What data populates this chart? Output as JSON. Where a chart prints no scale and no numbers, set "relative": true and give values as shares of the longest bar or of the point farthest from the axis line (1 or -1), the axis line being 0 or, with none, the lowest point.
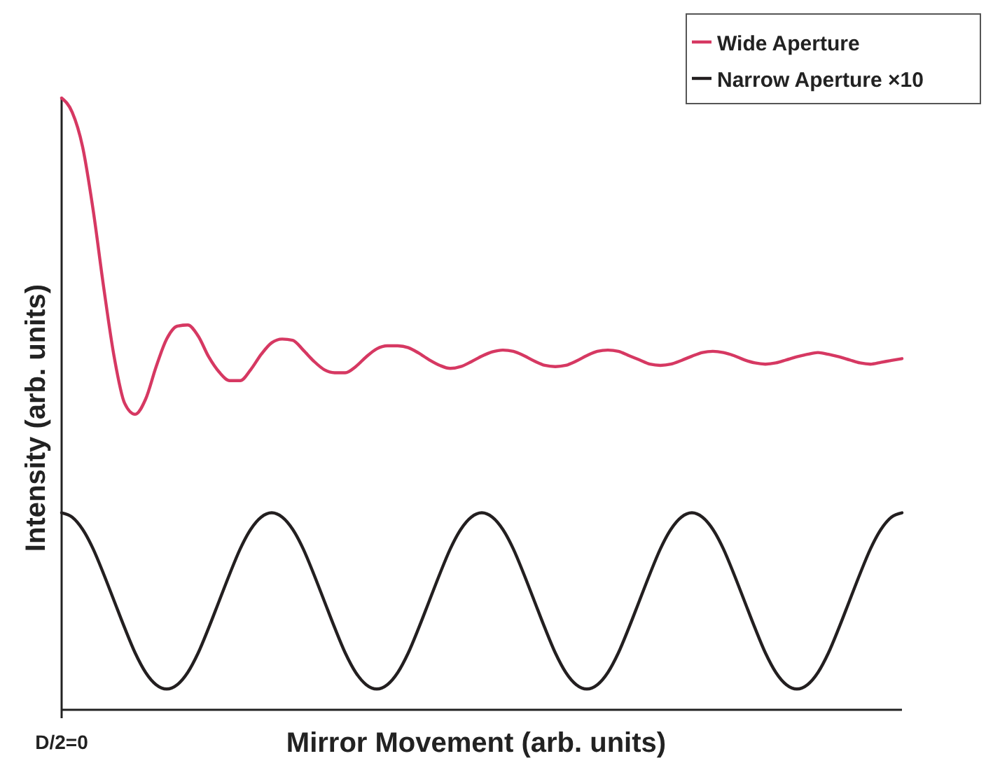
{
  "chart_data": {
    "type": "line",
    "relative": true,
    "xlabel": "Mirror Movement (arb. units)",
    "ylabel": "Intensity (arb. units)",
    "legend": "top right",
    "grid": false,
    "marker": "none",
    "line_style": "solid",
    "annotations": [
      "D/2=0"
    ],
    "categories": [
      null,
      null,
      null,
      null,
      null,
      null,
      null,
      null,
      null,
      null,
      null,
      null,
      null,
      null,
      null,
      null,
      null,
      null,
      null,
      null,
      null,
      null,
      null,
      null,
      null,
      null,
      null,
      null,
      null,
      null,
      null,
      null,
      null,
      null,
      null,
      null,
      null,
      null,
      null,
      null,
      null,
      null,
      null,
      null,
      null,
      null,
      null,
      null,
      null,
      null,
      null,
      null,
      null,
      null,
      null,
      null,
      null,
      null,
      null,
      null,
      null,
      null,
      null,
      null,
      null,
      null,
      null,
      null,
      null,
      null,
      null,
      null,
      null,
      null,
      null,
      null,
      null,
      null,
      null,
      null,
      null
    ],
    "series": [
      {
        "name": "Wide Aperture",
        "color": "#d63862",
        "values": [
          1.0,
          0.977,
          0.92,
          0.817,
          0.691,
          0.577,
          0.501,
          0.483,
          0.508,
          0.561,
          0.606,
          0.627,
          0.629,
          0.611,
          0.577,
          0.552,
          0.538,
          0.538,
          0.556,
          0.581,
          0.6,
          0.606,
          0.604,
          0.588,
          0.57,
          0.556,
          0.551,
          0.551,
          0.561,
          0.577,
          0.59,
          0.595,
          0.595,
          0.592,
          0.583,
          0.572,
          0.563,
          0.558,
          0.561,
          0.569,
          0.578,
          0.585,
          0.588,
          0.586,
          0.579,
          0.57,
          0.563,
          0.561,
          0.563,
          0.57,
          0.579,
          0.586,
          0.588,
          0.586,
          0.579,
          0.572,
          0.565,
          0.563,
          0.565,
          0.571,
          0.578,
          0.584,
          0.586,
          0.584,
          0.579,
          0.572,
          0.567,
          0.565,
          0.567,
          0.572,
          0.577,
          0.581,
          0.584,
          0.581,
          0.577,
          0.572,
          0.567,
          0.565,
          0.568,
          0.571,
          0.574
        ]
      },
      {
        "name": "Narrow Aperture ×10",
        "color": "#231f20",
        "values": [
          0.322,
          0.315,
          0.295,
          0.263,
          0.222,
          0.178,
          0.134,
          0.093,
          0.061,
          0.041,
          0.034,
          0.041,
          0.061,
          0.093,
          0.134,
          0.178,
          0.222,
          0.263,
          0.295,
          0.315,
          0.322,
          0.315,
          0.295,
          0.263,
          0.222,
          0.178,
          0.134,
          0.093,
          0.061,
          0.041,
          0.034,
          0.041,
          0.061,
          0.093,
          0.134,
          0.178,
          0.222,
          0.263,
          0.295,
          0.315,
          0.322,
          0.315,
          0.295,
          0.263,
          0.222,
          0.178,
          0.134,
          0.093,
          0.061,
          0.041,
          0.034,
          0.041,
          0.061,
          0.093,
          0.134,
          0.178,
          0.222,
          0.263,
          0.295,
          0.315,
          0.322,
          0.315,
          0.295,
          0.263,
          0.222,
          0.178,
          0.134,
          0.093,
          0.061,
          0.041,
          0.034,
          0.041,
          0.061,
          0.093,
          0.134,
          0.178,
          0.222,
          0.263,
          0.295,
          0.315,
          0.322
        ]
      }
    ]
  }
}
